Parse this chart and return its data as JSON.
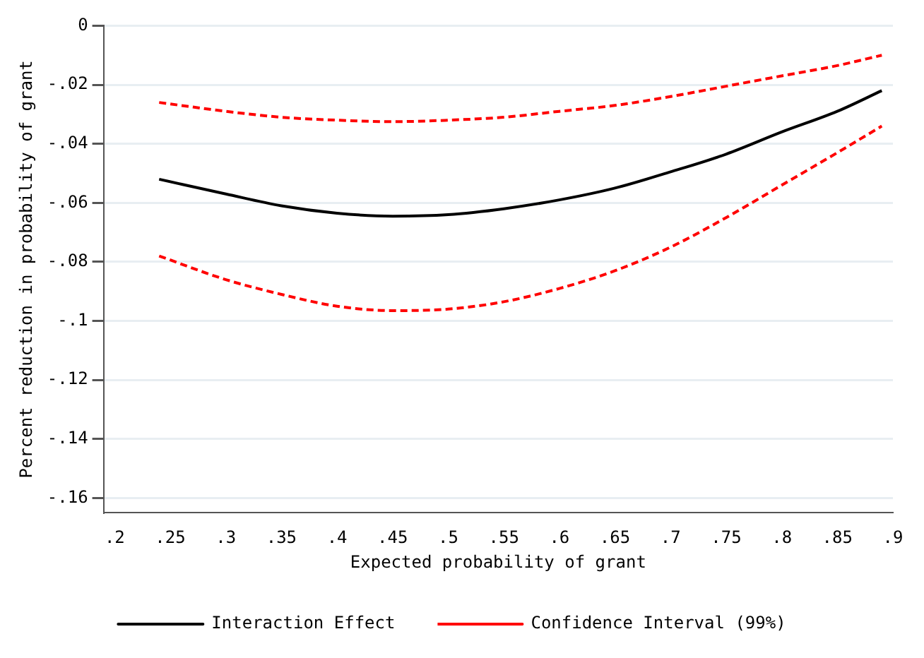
{
  "chart_data": {
    "type": "line",
    "xlabel": "Expected probability of grant",
    "ylabel": "Percent reduction in probability of grant",
    "x": [
      0.24,
      0.3,
      0.35,
      0.4,
      0.45,
      0.5,
      0.55,
      0.6,
      0.65,
      0.7,
      0.75,
      0.8,
      0.85,
      0.89
    ],
    "series": [
      {
        "name": "Interaction Effect",
        "color": "#000000",
        "line_style": "solid",
        "values": [
          -0.052,
          -0.057,
          -0.061,
          -0.0635,
          -0.0645,
          -0.064,
          -0.062,
          -0.059,
          -0.055,
          -0.0495,
          -0.0435,
          -0.036,
          -0.029,
          -0.022
        ]
      },
      {
        "name": "Confidence Interval (99%)",
        "color": "#ff0000",
        "line_style": "dashed",
        "values": [
          -0.026,
          -0.029,
          -0.031,
          -0.032,
          -0.0325,
          -0.032,
          -0.031,
          -0.029,
          -0.027,
          -0.024,
          -0.0205,
          -0.017,
          -0.0135,
          -0.01
        ]
      },
      {
        "color": "#ff0000",
        "line_style": "dashed",
        "values": [
          -0.078,
          -0.086,
          -0.091,
          -0.095,
          -0.0965,
          -0.096,
          -0.0935,
          -0.089,
          -0.083,
          -0.075,
          -0.065,
          -0.054,
          -0.043,
          -0.034
        ]
      }
    ],
    "xlim": [
      0.19,
      0.9
    ],
    "xticks": [
      {
        "value": 0.2,
        "label": ".2"
      },
      {
        "value": 0.25,
        "label": ".25"
      },
      {
        "value": 0.3,
        "label": ".3"
      },
      {
        "value": 0.35,
        "label": ".35"
      },
      {
        "value": 0.4,
        "label": ".4"
      },
      {
        "value": 0.45,
        "label": ".45"
      },
      {
        "value": 0.5,
        "label": ".5"
      },
      {
        "value": 0.55,
        "label": ".55"
      },
      {
        "value": 0.6,
        "label": ".6"
      },
      {
        "value": 0.65,
        "label": ".65"
      },
      {
        "value": 0.7,
        "label": ".7"
      },
      {
        "value": 0.75,
        "label": ".75"
      },
      {
        "value": 0.8,
        "label": ".8"
      },
      {
        "value": 0.85,
        "label": ".85"
      },
      {
        "value": 0.9,
        "label": ".9"
      }
    ],
    "ylim": [
      -0.165,
      0.0
    ],
    "yticks": [
      0,
      {
        "value": -0.02,
        "label": "-.02"
      },
      {
        "value": -0.04,
        "label": "-.04"
      },
      {
        "value": -0.06,
        "label": "-.06"
      },
      {
        "value": -0.08,
        "label": "-.08"
      },
      {
        "value": -0.1,
        "label": "-.1"
      },
      {
        "value": -0.12,
        "label": "-.12"
      },
      {
        "value": -0.14,
        "label": "-.14"
      },
      {
        "value": -0.16,
        "label": "-.16"
      }
    ],
    "grid": "y",
    "legend": "bottom",
    "marker": "none"
  }
}
